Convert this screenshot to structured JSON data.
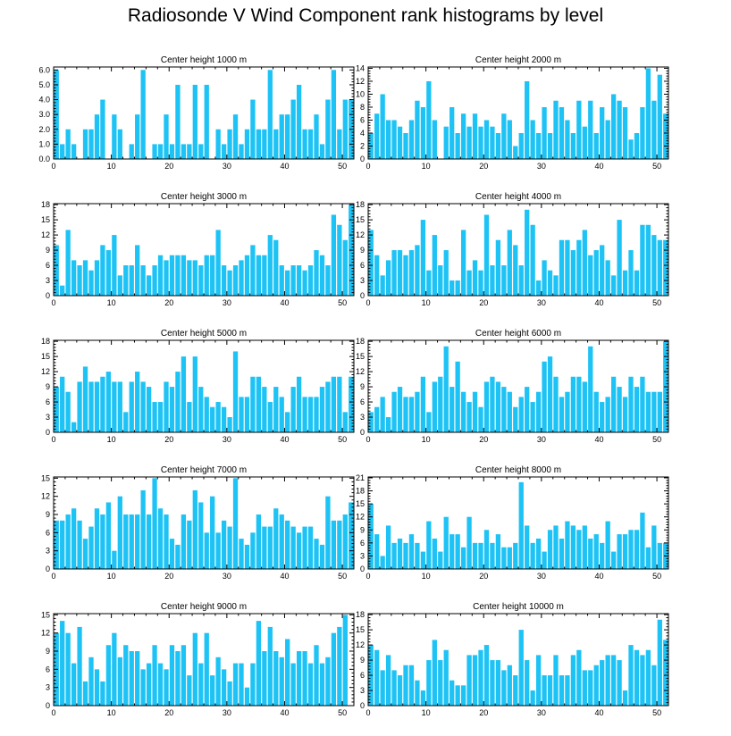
{
  "title": "Radiosonde V Wind Component rank histograms by level",
  "colors": {
    "bar": "#1ec3f5",
    "axis": "#000000",
    "background": "#ffffff"
  },
  "chart_data": [
    {
      "type": "bar",
      "title": "Center height 1000 m",
      "xlabel": "",
      "ylabel": "",
      "xlim": [
        0,
        52
      ],
      "ylim": [
        0,
        6.2
      ],
      "xticks": [
        0,
        10,
        20,
        30,
        40,
        50
      ],
      "xtick_labels": [
        "0",
        "10",
        "20",
        "30",
        "40",
        "50"
      ],
      "yticks": [
        0,
        1,
        2,
        3,
        4,
        5,
        6
      ],
      "ytick_labels": [
        "0.0",
        "1.0",
        "2.0",
        "3.0",
        "4.0",
        "5.0",
        "6.0"
      ],
      "values": [
        6,
        1,
        2,
        1,
        0,
        2,
        2,
        3,
        4,
        0,
        3,
        2,
        0,
        1,
        3,
        6,
        0,
        1,
        1,
        3,
        1,
        5,
        1,
        1,
        5,
        1,
        5,
        0,
        2,
        1,
        2,
        3,
        1,
        2,
        4,
        2,
        2,
        6,
        2,
        3,
        3,
        4,
        5,
        2,
        2,
        3,
        1,
        4,
        6,
        2,
        4,
        4
      ]
    },
    {
      "type": "bar",
      "title": "Center height 2000 m",
      "xlabel": "",
      "ylabel": "",
      "xlim": [
        0,
        52
      ],
      "ylim": [
        0,
        14.2
      ],
      "xticks": [
        0,
        10,
        20,
        30,
        40,
        50
      ],
      "xtick_labels": [
        "0",
        "10",
        "20",
        "30",
        "40",
        "50"
      ],
      "yticks": [
        0,
        2,
        4,
        6,
        8,
        10,
        12,
        14
      ],
      "ytick_labels": [
        "0",
        "2",
        "4",
        "6",
        "8",
        "10",
        "12",
        "14"
      ],
      "values": [
        4,
        7,
        10,
        6,
        6,
        5,
        4,
        6,
        9,
        8,
        12,
        6,
        0,
        5,
        8,
        4,
        7,
        5,
        7,
        5,
        6,
        5,
        4,
        7,
        6,
        2,
        4,
        12,
        6,
        4,
        8,
        4,
        9,
        8,
        6,
        4,
        9,
        5,
        9,
        4,
        8,
        6,
        10,
        9,
        8,
        3,
        4,
        8,
        14,
        9,
        13,
        7
      ]
    },
    {
      "type": "bar",
      "title": "Center height 3000 m",
      "xlabel": "",
      "ylabel": "",
      "xlim": [
        0,
        52
      ],
      "ylim": [
        0,
        18.2
      ],
      "xticks": [
        0,
        10,
        20,
        30,
        40,
        50
      ],
      "xtick_labels": [
        "0",
        "10",
        "20",
        "30",
        "40",
        "50"
      ],
      "yticks": [
        0,
        3,
        6,
        9,
        12,
        15,
        18
      ],
      "ytick_labels": [
        "0",
        "3",
        "6",
        "9",
        "12",
        "15",
        "18"
      ],
      "values": [
        10,
        2,
        13,
        7,
        6,
        7,
        5,
        7,
        10,
        9,
        12,
        4,
        6,
        6,
        10,
        6,
        4,
        6,
        8,
        7,
        8,
        8,
        8,
        7,
        7,
        6,
        8,
        8,
        13,
        6,
        5,
        6,
        7,
        8,
        10,
        8,
        8,
        12,
        11,
        6,
        5,
        6,
        6,
        5,
        6,
        9,
        8,
        6,
        16,
        14,
        11,
        18
      ]
    },
    {
      "type": "bar",
      "title": "Center height 4000 m",
      "xlabel": "",
      "ylabel": "",
      "xlim": [
        0,
        52
      ],
      "ylim": [
        0,
        18.2
      ],
      "xticks": [
        0,
        10,
        20,
        30,
        40,
        50
      ],
      "xtick_labels": [
        "0",
        "10",
        "20",
        "30",
        "40",
        "50"
      ],
      "yticks": [
        0,
        3,
        6,
        9,
        12,
        15,
        18
      ],
      "ytick_labels": [
        "0",
        "3",
        "6",
        "9",
        "12",
        "15",
        "18"
      ],
      "values": [
        13,
        8,
        4,
        7,
        9,
        9,
        8,
        9,
        10,
        15,
        5,
        12,
        6,
        9,
        3,
        3,
        13,
        5,
        7,
        5,
        16,
        6,
        11,
        6,
        13,
        10,
        6,
        17,
        14,
        3,
        7,
        5,
        4,
        11,
        11,
        9,
        11,
        13,
        8,
        9,
        10,
        7,
        4,
        15,
        5,
        9,
        5,
        14,
        14,
        12,
        11,
        11
      ]
    },
    {
      "type": "bar",
      "title": "Center height 5000 m",
      "xlabel": "",
      "ylabel": "",
      "xlim": [
        0,
        52
      ],
      "ylim": [
        0,
        18.2
      ],
      "xticks": [
        0,
        10,
        20,
        30,
        40,
        50
      ],
      "xtick_labels": [
        "0",
        "10",
        "20",
        "30",
        "40",
        "50"
      ],
      "yticks": [
        0,
        3,
        6,
        9,
        12,
        15,
        18
      ],
      "ytick_labels": [
        "0",
        "3",
        "6",
        "9",
        "12",
        "15",
        "18"
      ],
      "values": [
        9,
        11,
        8,
        2,
        10,
        13,
        10,
        10,
        11,
        12,
        10,
        10,
        4,
        10,
        12,
        10,
        9,
        6,
        6,
        10,
        9,
        12,
        15,
        6,
        15,
        9,
        7,
        5,
        6,
        5,
        3,
        16,
        7,
        7,
        11,
        11,
        9,
        6,
        9,
        7,
        4,
        9,
        11,
        7,
        7,
        7,
        9,
        10,
        11,
        11,
        4,
        11
      ]
    },
    {
      "type": "bar",
      "title": "Center height 6000 m",
      "xlabel": "",
      "ylabel": "",
      "xlim": [
        0,
        52
      ],
      "ylim": [
        0,
        18.2
      ],
      "xticks": [
        0,
        10,
        20,
        30,
        40,
        50
      ],
      "xtick_labels": [
        "0",
        "10",
        "20",
        "30",
        "40",
        "50"
      ],
      "yticks": [
        0,
        3,
        6,
        9,
        12,
        15,
        18
      ],
      "ytick_labels": [
        "0",
        "3",
        "6",
        "9",
        "12",
        "15",
        "18"
      ],
      "values": [
        4,
        5,
        7,
        3,
        8,
        9,
        7,
        7,
        8,
        11,
        4,
        10,
        11,
        17,
        9,
        14,
        8,
        6,
        8,
        5,
        10,
        11,
        10,
        9,
        8,
        5,
        7,
        9,
        6,
        8,
        14,
        15,
        11,
        7,
        8,
        11,
        11,
        10,
        17,
        8,
        6,
        7,
        11,
        9,
        7,
        11,
        9,
        11,
        8,
        8,
        8,
        18
      ]
    },
    {
      "type": "bar",
      "title": "Center height 7000 m",
      "xlabel": "",
      "ylabel": "",
      "xlim": [
        0,
        52
      ],
      "ylim": [
        0,
        15.2
      ],
      "xticks": [
        0,
        10,
        20,
        30,
        40,
        50
      ],
      "xtick_labels": [
        "0",
        "10",
        "20",
        "30",
        "40",
        "50"
      ],
      "yticks": [
        0,
        3,
        6,
        9,
        12,
        15
      ],
      "ytick_labels": [
        "0",
        "3",
        "6",
        "9",
        "12",
        "15"
      ],
      "values": [
        8,
        8,
        9,
        10,
        8,
        5,
        7,
        10,
        9,
        11,
        3,
        12,
        9,
        9,
        9,
        13,
        9,
        15,
        10,
        9,
        5,
        4,
        9,
        8,
        13,
        11,
        6,
        12,
        6,
        8,
        7,
        15,
        5,
        4,
        6,
        9,
        7,
        7,
        10,
        9,
        8,
        7,
        6,
        7,
        7,
        5,
        4,
        12,
        8,
        8,
        9,
        11
      ]
    },
    {
      "type": "bar",
      "title": "Center height 8000 m",
      "xlabel": "",
      "ylabel": "",
      "xlim": [
        0,
        52
      ],
      "ylim": [
        0,
        21.2
      ],
      "xticks": [
        0,
        10,
        20,
        30,
        40,
        50
      ],
      "xtick_labels": [
        "0",
        "10",
        "20",
        "30",
        "40",
        "50"
      ],
      "yticks": [
        0,
        3,
        6,
        9,
        12,
        15,
        18,
        21
      ],
      "ytick_labels": [
        "0",
        "3",
        "6",
        "9",
        "12",
        "15",
        "18",
        "21"
      ],
      "values": [
        15,
        8,
        3,
        10,
        6,
        7,
        6,
        8,
        6,
        4,
        11,
        7,
        4,
        12,
        8,
        8,
        5,
        12,
        6,
        6,
        9,
        6,
        8,
        5,
        5,
        6,
        20,
        10,
        6,
        7,
        4,
        9,
        10,
        7,
        11,
        10,
        9,
        10,
        7,
        8,
        6,
        11,
        4,
        8,
        8,
        9,
        9,
        13,
        5,
        10,
        6,
        6
      ]
    },
    {
      "type": "bar",
      "title": "Center height 9000 m",
      "xlabel": "",
      "ylabel": "",
      "xlim": [
        0,
        52
      ],
      "ylim": [
        0,
        15.2
      ],
      "xticks": [
        0,
        10,
        20,
        30,
        40,
        50
      ],
      "xtick_labels": [
        "0",
        "10",
        "20",
        "30",
        "40",
        "50"
      ],
      "yticks": [
        0,
        3,
        6,
        9,
        12,
        15
      ],
      "ytick_labels": [
        "0",
        "3",
        "6",
        "9",
        "12",
        "15"
      ],
      "values": [
        12,
        14,
        12,
        7,
        13,
        4,
        8,
        6,
        4,
        10,
        12,
        8,
        10,
        9,
        9,
        6,
        7,
        10,
        7,
        6,
        10,
        9,
        10,
        5,
        12,
        7,
        12,
        5,
        8,
        6,
        4,
        7,
        7,
        3,
        7,
        14,
        9,
        13,
        9,
        8,
        11,
        7,
        9,
        9,
        7,
        10,
        7,
        8,
        12,
        13,
        15,
        0
      ]
    },
    {
      "type": "bar",
      "title": "Center height 10000 m",
      "xlabel": "",
      "ylabel": "",
      "xlim": [
        0,
        52
      ],
      "ylim": [
        0,
        18.2
      ],
      "xticks": [
        0,
        10,
        20,
        30,
        40,
        50
      ],
      "xtick_labels": [
        "0",
        "10",
        "20",
        "30",
        "40",
        "50"
      ],
      "yticks": [
        0,
        3,
        6,
        9,
        12,
        15,
        18
      ],
      "ytick_labels": [
        "0",
        "3",
        "6",
        "9",
        "12",
        "15",
        "18"
      ],
      "values": [
        12,
        11,
        7,
        10,
        7,
        6,
        8,
        8,
        5,
        3,
        9,
        13,
        9,
        11,
        5,
        4,
        4,
        10,
        10,
        11,
        12,
        9,
        9,
        7,
        8,
        6,
        15,
        9,
        3,
        10,
        6,
        6,
        10,
        6,
        6,
        10,
        11,
        7,
        7,
        8,
        9,
        10,
        10,
        9,
        3,
        12,
        11,
        10,
        11,
        8,
        17,
        13
      ]
    }
  ]
}
